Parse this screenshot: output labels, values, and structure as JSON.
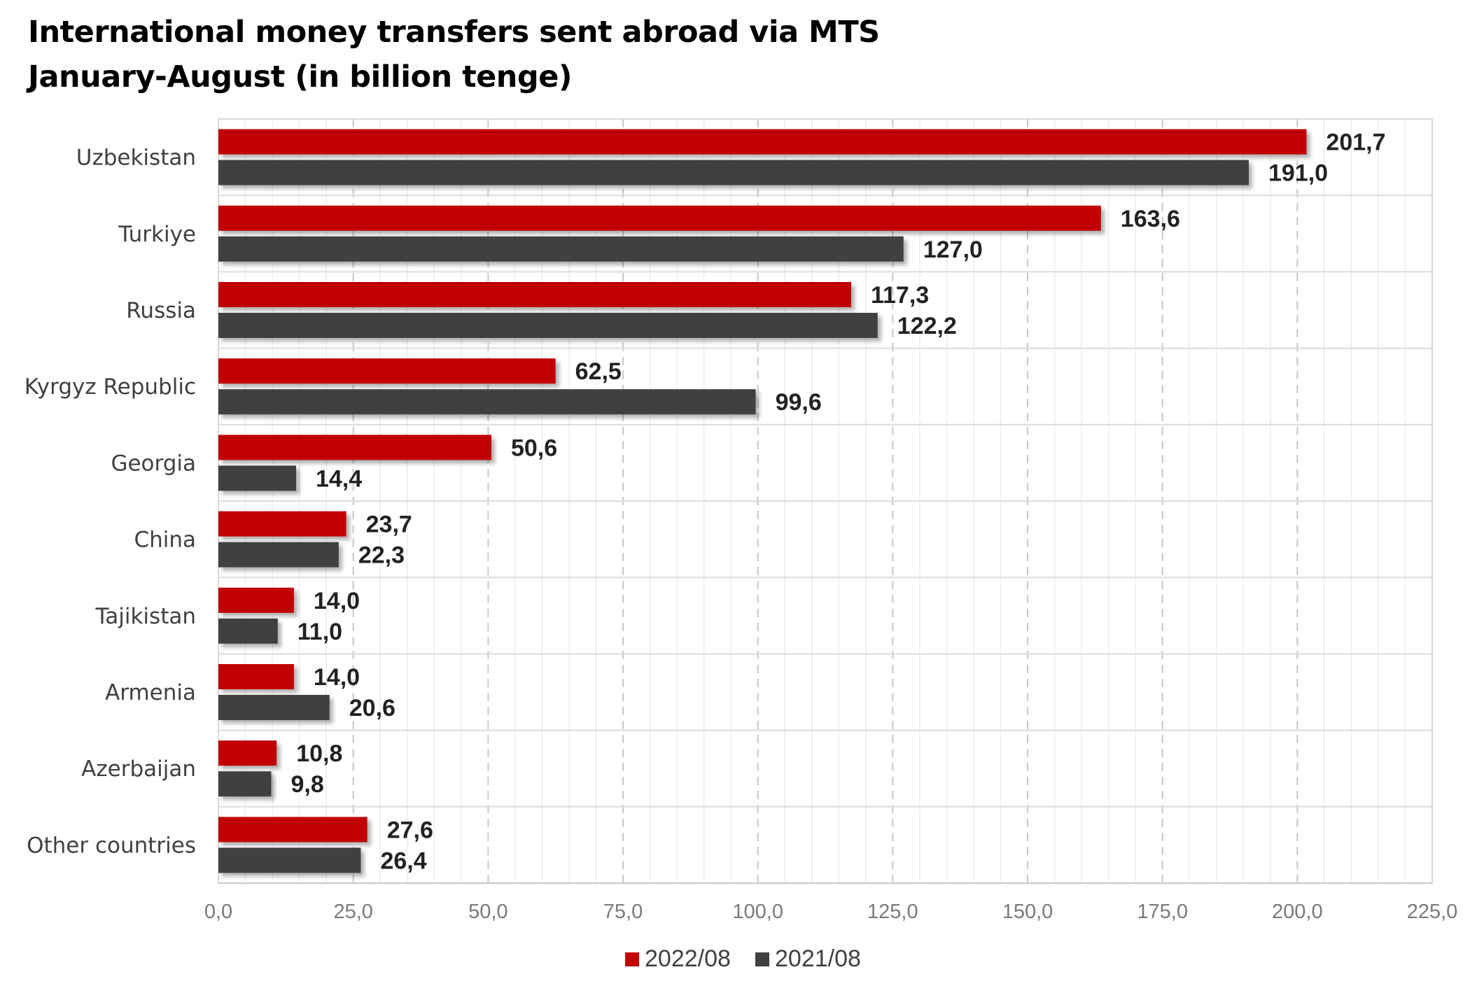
{
  "chart_data": {
    "type": "bar",
    "orientation": "horizontal",
    "title": "International money transfers sent abroad via MTS",
    "subtitle": "January-August (in billion tenge)",
    "categories": [
      "Uzbekistan",
      "Turkiye",
      "Russia",
      "Kyrgyz Republic",
      "Georgia",
      "China",
      "Tajikistan",
      "Armenia",
      "Azerbaijan",
      "Other countries"
    ],
    "series": [
      {
        "name": "2022/08",
        "color": "#c00000",
        "values": [
          201.7,
          163.6,
          117.3,
          62.5,
          50.6,
          23.7,
          14.0,
          14.0,
          10.8,
          27.6
        ],
        "labels": [
          "201,7",
          "163,6",
          "117,3",
          "62,5",
          "50,6",
          "23,7",
          "14,0",
          "14,0",
          "10,8",
          "27,6"
        ]
      },
      {
        "name": "2021/08",
        "color": "#404040",
        "values": [
          191.0,
          127.0,
          122.2,
          99.6,
          14.4,
          22.3,
          11.0,
          20.6,
          9.8,
          26.4
        ],
        "labels": [
          "191,0",
          "127,0",
          "122,2",
          "99,6",
          "14,4",
          "22,3",
          "11,0",
          "20,6",
          "9,8",
          "26,4"
        ]
      }
    ],
    "xlim": [
      0,
      225
    ],
    "x_ticks": [
      "0,0",
      "25,0",
      "50,0",
      "75,0",
      "100,0",
      "125,0",
      "150,0",
      "175,0",
      "200,0",
      "225,0"
    ],
    "grid": true,
    "legend_position": "bottom"
  }
}
